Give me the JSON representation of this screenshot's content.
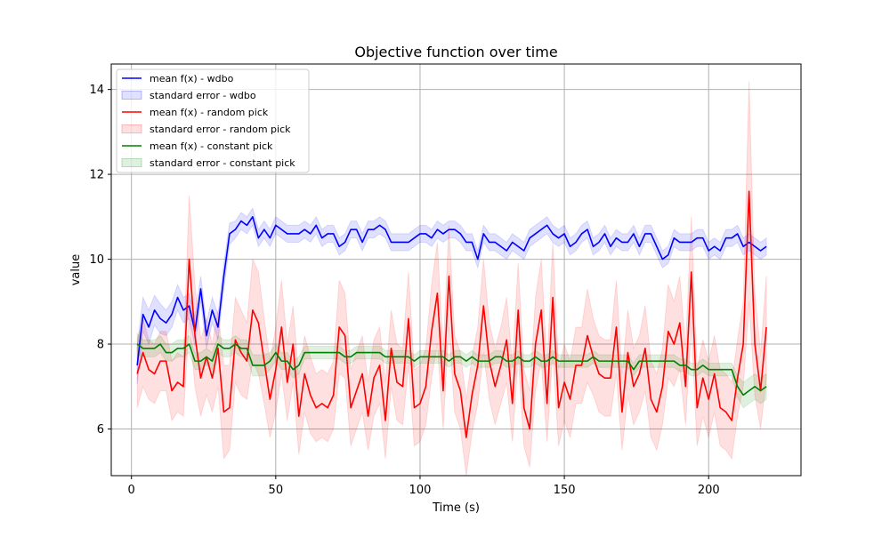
{
  "chart_data": {
    "type": "line",
    "title": "Objective function over time",
    "xlabel": "Time (s)",
    "ylabel": "value",
    "xlim": [
      -7,
      232
    ],
    "ylim": [
      4.9,
      14.6
    ],
    "xticks": [
      0,
      50,
      100,
      150,
      200
    ],
    "yticks": [
      6,
      8,
      10,
      12,
      14
    ],
    "grid": true,
    "legend_position": "top-left",
    "x": [
      2,
      4,
      6,
      8,
      10,
      12,
      14,
      16,
      18,
      20,
      22,
      24,
      26,
      28,
      30,
      32,
      34,
      36,
      38,
      40,
      42,
      44,
      46,
      48,
      50,
      52,
      54,
      56,
      58,
      60,
      62,
      64,
      66,
      68,
      70,
      72,
      74,
      76,
      78,
      80,
      82,
      84,
      86,
      88,
      90,
      92,
      94,
      96,
      98,
      100,
      102,
      104,
      106,
      108,
      110,
      112,
      114,
      116,
      118,
      120,
      122,
      124,
      126,
      128,
      130,
      132,
      134,
      136,
      138,
      140,
      142,
      144,
      146,
      148,
      150,
      152,
      154,
      156,
      158,
      160,
      162,
      164,
      166,
      168,
      170,
      172,
      174,
      176,
      178,
      180,
      182,
      184,
      186,
      188,
      190,
      192,
      194,
      196,
      198,
      200,
      202,
      204,
      206,
      208,
      210,
      212,
      214,
      216,
      218,
      220
    ],
    "series": [
      {
        "name": "mean f(x) - wdbo",
        "band_name": "standard error - wdbo",
        "color": "#0000ff",
        "band_color": "#0000ff",
        "values": [
          7.5,
          8.7,
          8.4,
          8.8,
          8.6,
          8.5,
          8.7,
          9.1,
          8.8,
          8.9,
          8.3,
          9.3,
          8.2,
          8.8,
          8.4,
          9.6,
          10.6,
          10.7,
          10.9,
          10.8,
          11.0,
          10.5,
          10.7,
          10.5,
          10.8,
          10.7,
          10.6,
          10.6,
          10.6,
          10.7,
          10.6,
          10.8,
          10.5,
          10.6,
          10.6,
          10.3,
          10.4,
          10.7,
          10.7,
          10.4,
          10.7,
          10.7,
          10.8,
          10.7,
          10.4,
          10.4,
          10.4,
          10.4,
          10.5,
          10.6,
          10.6,
          10.5,
          10.7,
          10.6,
          10.7,
          10.7,
          10.6,
          10.4,
          10.4,
          10.0,
          10.6,
          10.4,
          10.4,
          10.3,
          10.2,
          10.4,
          10.3,
          10.2,
          10.5,
          10.6,
          10.7,
          10.8,
          10.6,
          10.5,
          10.6,
          10.3,
          10.4,
          10.6,
          10.7,
          10.3,
          10.4,
          10.6,
          10.3,
          10.5,
          10.4,
          10.4,
          10.6,
          10.3,
          10.6,
          10.6,
          10.3,
          10.0,
          10.1,
          10.5,
          10.4,
          10.4,
          10.4,
          10.5,
          10.5,
          10.2,
          10.3,
          10.2,
          10.5,
          10.5,
          10.6,
          10.3,
          10.4,
          10.3,
          10.2,
          10.3
        ],
        "errors": [
          0.45,
          0.4,
          0.4,
          0.35,
          0.35,
          0.3,
          0.3,
          0.3,
          0.3,
          0.3,
          0.35,
          0.3,
          0.3,
          0.3,
          0.3,
          0.3,
          0.25,
          0.2,
          0.2,
          0.2,
          0.2,
          0.2,
          0.2,
          0.2,
          0.2,
          0.2,
          0.2,
          0.2,
          0.2,
          0.2,
          0.2,
          0.2,
          0.2,
          0.2,
          0.2,
          0.2,
          0.2,
          0.2,
          0.2,
          0.2,
          0.2,
          0.2,
          0.2,
          0.2,
          0.2,
          0.2,
          0.2,
          0.2,
          0.2,
          0.2,
          0.2,
          0.2,
          0.2,
          0.2,
          0.2,
          0.2,
          0.2,
          0.2,
          0.2,
          0.2,
          0.2,
          0.2,
          0.2,
          0.2,
          0.2,
          0.2,
          0.2,
          0.2,
          0.2,
          0.2,
          0.2,
          0.2,
          0.2,
          0.2,
          0.2,
          0.2,
          0.2,
          0.2,
          0.2,
          0.2,
          0.2,
          0.2,
          0.2,
          0.2,
          0.2,
          0.2,
          0.2,
          0.2,
          0.2,
          0.2,
          0.2,
          0.2,
          0.2,
          0.2,
          0.2,
          0.2,
          0.2,
          0.2,
          0.2,
          0.2,
          0.2,
          0.2,
          0.2,
          0.2,
          0.2,
          0.2,
          0.2,
          0.2,
          0.2,
          0.2
        ]
      },
      {
        "name": "mean f(x) - random pick",
        "band_name": "standard error - random pick",
        "color": "#ff0000",
        "band_color": "#ff0000",
        "values": [
          7.3,
          7.8,
          7.4,
          7.3,
          7.6,
          7.6,
          6.9,
          7.1,
          7.0,
          10.0,
          8.2,
          7.2,
          7.7,
          7.2,
          7.9,
          6.4,
          6.5,
          8.1,
          7.8,
          7.6,
          8.8,
          8.5,
          7.6,
          6.7,
          7.4,
          8.4,
          7.1,
          8.0,
          6.3,
          7.3,
          6.8,
          6.5,
          6.6,
          6.5,
          6.8,
          8.4,
          8.2,
          6.5,
          6.9,
          7.3,
          6.3,
          7.2,
          7.5,
          6.2,
          7.9,
          7.1,
          7.0,
          8.6,
          6.5,
          6.6,
          7.0,
          8.3,
          9.2,
          6.9,
          9.6,
          7.3,
          6.9,
          5.8,
          6.8,
          7.5,
          8.9,
          7.6,
          7.0,
          7.5,
          8.1,
          6.6,
          8.8,
          6.5,
          6.0,
          8.0,
          8.8,
          6.6,
          9.1,
          6.5,
          7.1,
          6.7,
          7.5,
          7.5,
          8.2,
          7.7,
          7.3,
          7.2,
          7.2,
          8.4,
          6.4,
          7.8,
          7.0,
          7.3,
          7.9,
          6.7,
          6.4,
          7.0,
          8.3,
          8.0,
          8.5,
          7.0,
          9.7,
          6.5,
          7.2,
          6.7,
          7.3,
          6.5,
          6.4,
          6.2,
          7.2,
          8.0,
          11.6,
          8.0,
          6.9,
          8.4
        ],
        "errors": [
          0.8,
          0.8,
          0.7,
          0.7,
          0.7,
          0.7,
          0.7,
          0.7,
          0.7,
          1.5,
          1.2,
          0.9,
          0.9,
          0.8,
          0.9,
          1.1,
          1.0,
          1.0,
          1.0,
          0.9,
          1.2,
          1.2,
          1.0,
          0.9,
          1.0,
          1.1,
          0.9,
          0.9,
          0.9,
          0.9,
          0.9,
          0.8,
          0.8,
          0.8,
          0.8,
          1.1,
          1.0,
          0.9,
          0.9,
          0.9,
          0.8,
          0.9,
          0.9,
          0.9,
          0.9,
          0.9,
          0.9,
          1.1,
          0.9,
          0.9,
          0.9,
          1.1,
          1.2,
          0.9,
          1.2,
          0.9,
          0.9,
          0.9,
          0.9,
          0.9,
          1.1,
          0.9,
          0.9,
          0.9,
          1.0,
          0.9,
          1.1,
          0.9,
          0.9,
          1.1,
          1.2,
          0.9,
          1.3,
          0.9,
          0.9,
          0.9,
          0.9,
          0.9,
          1.1,
          0.9,
          0.9,
          0.9,
          0.9,
          1.1,
          0.9,
          1.0,
          0.9,
          0.9,
          1.0,
          0.9,
          0.9,
          0.9,
          1.1,
          1.0,
          1.1,
          0.9,
          1.3,
          0.9,
          0.9,
          0.9,
          0.9,
          0.9,
          0.9,
          0.9,
          0.9,
          1.0,
          2.6,
          1.2,
          0.9,
          1.2
        ]
      },
      {
        "name": "mean f(x) - constant pick",
        "band_name": "standard error - constant pick",
        "color": "#008000",
        "band_color": "#008000",
        "values": [
          8.0,
          7.9,
          7.9,
          7.9,
          8.0,
          7.8,
          7.8,
          7.9,
          7.9,
          8.0,
          7.6,
          7.6,
          7.7,
          7.6,
          8.0,
          7.9,
          7.9,
          8.0,
          7.9,
          7.9,
          7.5,
          7.5,
          7.5,
          7.6,
          7.8,
          7.6,
          7.6,
          7.4,
          7.5,
          7.8,
          7.8,
          7.8,
          7.8,
          7.8,
          7.8,
          7.8,
          7.7,
          7.7,
          7.8,
          7.8,
          7.8,
          7.8,
          7.8,
          7.7,
          7.7,
          7.7,
          7.7,
          7.7,
          7.6,
          7.7,
          7.7,
          7.7,
          7.7,
          7.7,
          7.6,
          7.7,
          7.7,
          7.6,
          7.7,
          7.6,
          7.6,
          7.6,
          7.7,
          7.7,
          7.6,
          7.6,
          7.7,
          7.6,
          7.6,
          7.7,
          7.6,
          7.6,
          7.7,
          7.6,
          7.6,
          7.6,
          7.6,
          7.6,
          7.6,
          7.7,
          7.6,
          7.6,
          7.6,
          7.6,
          7.6,
          7.6,
          7.4,
          7.6,
          7.6,
          7.6,
          7.6,
          7.6,
          7.6,
          7.6,
          7.5,
          7.5,
          7.4,
          7.4,
          7.5,
          7.4,
          7.4,
          7.4,
          7.4,
          7.4,
          7.0,
          6.8,
          6.9,
          7.0,
          6.9,
          7.0
        ],
        "errors": [
          0.25,
          0.2,
          0.2,
          0.2,
          0.2,
          0.2,
          0.2,
          0.2,
          0.2,
          0.2,
          0.2,
          0.2,
          0.2,
          0.2,
          0.2,
          0.2,
          0.2,
          0.2,
          0.2,
          0.2,
          0.25,
          0.25,
          0.25,
          0.2,
          0.2,
          0.2,
          0.2,
          0.2,
          0.2,
          0.15,
          0.15,
          0.15,
          0.15,
          0.15,
          0.15,
          0.15,
          0.15,
          0.15,
          0.15,
          0.15,
          0.15,
          0.15,
          0.15,
          0.15,
          0.15,
          0.15,
          0.15,
          0.15,
          0.15,
          0.15,
          0.15,
          0.15,
          0.15,
          0.15,
          0.15,
          0.15,
          0.15,
          0.15,
          0.15,
          0.15,
          0.15,
          0.15,
          0.15,
          0.15,
          0.15,
          0.15,
          0.15,
          0.15,
          0.15,
          0.15,
          0.15,
          0.15,
          0.15,
          0.15,
          0.15,
          0.15,
          0.15,
          0.15,
          0.15,
          0.15,
          0.15,
          0.15,
          0.15,
          0.15,
          0.15,
          0.15,
          0.15,
          0.15,
          0.15,
          0.15,
          0.15,
          0.15,
          0.15,
          0.15,
          0.15,
          0.15,
          0.15,
          0.15,
          0.15,
          0.15,
          0.15,
          0.15,
          0.15,
          0.15,
          0.25,
          0.3,
          0.3,
          0.3,
          0.3,
          0.3
        ]
      }
    ]
  }
}
